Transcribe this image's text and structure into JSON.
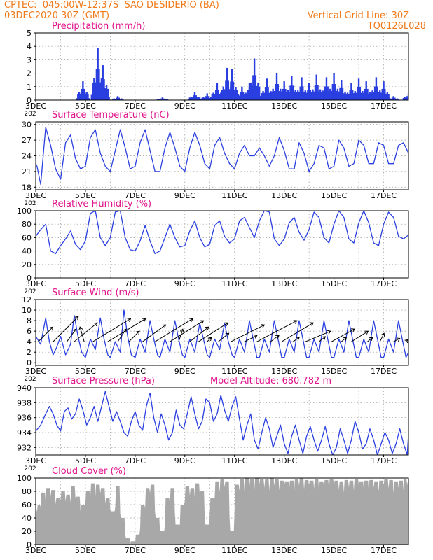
{
  "header": {
    "line1": "CPTEC:  045:00W-12:37S  SAO DESIDERIO (BA)",
    "line2": "03DEC2020 30Z (GMT)",
    "grid_note": "Vertical Grid Line: 30Z",
    "code": "TQ0126L028"
  },
  "colors": {
    "header": "#f07a1a",
    "title": "#e0148c",
    "series": "#2a3fe0",
    "cloud": "#a8a8a8"
  },
  "chart_data": [
    {
      "type": "bar",
      "title": "Precipitation (mm/h)",
      "ylim": [
        0,
        5
      ],
      "yticks": [
        0,
        1,
        2,
        3,
        4,
        5
      ],
      "x_tick_labels": [
        "3DEC",
        "5DEC",
        "7DEC",
        "9DEC",
        "11DEC",
        "13DEC",
        "15DEC",
        "17DEC"
      ],
      "overflow_label": "202",
      "bursts": [
        {
          "day": 4.9,
          "peak": 1.4
        },
        {
          "day": 5.5,
          "peak": 3.9
        },
        {
          "day": 5.7,
          "peak": 2.6
        },
        {
          "day": 6.3,
          "peak": 0.3
        },
        {
          "day": 8.1,
          "peak": 0.2
        },
        {
          "day": 9.4,
          "peak": 0.6
        },
        {
          "day": 9.9,
          "peak": 0.5
        },
        {
          "day": 10.3,
          "peak": 1.3
        },
        {
          "day": 10.7,
          "peak": 2.4
        },
        {
          "day": 10.9,
          "peak": 2.3
        },
        {
          "day": 11.3,
          "peak": 1.0
        },
        {
          "day": 11.6,
          "peak": 1.3
        },
        {
          "day": 11.8,
          "peak": 3.1
        },
        {
          "day": 12.3,
          "peak": 1.6
        },
        {
          "day": 12.7,
          "peak": 2.0
        },
        {
          "day": 13.0,
          "peak": 1.4
        },
        {
          "day": 13.3,
          "peak": 1.8
        },
        {
          "day": 13.7,
          "peak": 1.7
        },
        {
          "day": 14.0,
          "peak": 1.3
        },
        {
          "day": 14.3,
          "peak": 1.9
        },
        {
          "day": 14.7,
          "peak": 1.7
        },
        {
          "day": 15.0,
          "peak": 2.0
        },
        {
          "day": 15.3,
          "peak": 1.5
        },
        {
          "day": 15.7,
          "peak": 1.3
        },
        {
          "day": 16.0,
          "peak": 1.6
        },
        {
          "day": 16.3,
          "peak": 1.4
        },
        {
          "day": 16.7,
          "peak": 1.7
        },
        {
          "day": 17.0,
          "peak": 1.4
        },
        {
          "day": 17.4,
          "peak": 0.3
        },
        {
          "day": 18.0,
          "peak": 0.5
        }
      ]
    },
    {
      "type": "line",
      "title": "Surface Temperature (nC)",
      "ylim": [
        17.5,
        30.5
      ],
      "yticks": [
        18,
        21,
        24,
        27,
        30
      ],
      "x_tick_labels": [
        "3DEC",
        "5DEC",
        "7DEC",
        "9DEC",
        "11DEC",
        "13DEC",
        "15DEC",
        "17DEC"
      ],
      "overflow_label": "202",
      "x": [
        3.0,
        3.05,
        3.2,
        3.4,
        3.6,
        3.8,
        4.0,
        4.2,
        4.4,
        4.6,
        4.8,
        5.0,
        5.2,
        5.4,
        5.6,
        5.8,
        6.0,
        6.2,
        6.4,
        6.6,
        6.8,
        7.0,
        7.2,
        7.4,
        7.6,
        7.8,
        8.0,
        8.2,
        8.4,
        8.6,
        8.8,
        9.0,
        9.2,
        9.4,
        9.6,
        9.8,
        10.0,
        10.2,
        10.4,
        10.6,
        10.8,
        11.0,
        11.2,
        11.4,
        11.6,
        11.8,
        12.0,
        12.2,
        12.4,
        12.6,
        12.8,
        13.0,
        13.2,
        13.4,
        13.6,
        13.8,
        14.0,
        14.2,
        14.4,
        14.6,
        14.8,
        15.0,
        15.2,
        15.4,
        15.6,
        15.8,
        16.0,
        16.2,
        16.4,
        16.6,
        16.8,
        17.0,
        17.2,
        17.4,
        17.6,
        17.8,
        18.0
      ],
      "y": [
        22.5,
        22.0,
        18.5,
        29.5,
        26.0,
        21.5,
        19.5,
        26.5,
        28.0,
        23.5,
        21.5,
        22.0,
        27.5,
        29.0,
        24.5,
        22.0,
        21.0,
        25.0,
        29.0,
        25.5,
        21.5,
        22.0,
        26.5,
        29.0,
        25.0,
        21.0,
        21.0,
        25.5,
        28.5,
        25.5,
        22.0,
        21.0,
        25.5,
        28.5,
        26.0,
        22.5,
        21.5,
        26.0,
        27.5,
        24.5,
        22.5,
        21.5,
        24.5,
        26.0,
        24.0,
        24.0,
        25.5,
        24.0,
        22.0,
        24.0,
        27.5,
        25.0,
        21.5,
        21.5,
        26.5,
        24.5,
        21.0,
        22.5,
        26.0,
        25.5,
        21.5,
        22.0,
        27.0,
        25.5,
        22.0,
        22.5,
        27.0,
        26.0,
        22.5,
        22.5,
        26.5,
        26.0,
        22.5,
        22.5,
        26.0,
        26.5,
        24.5
      ]
    },
    {
      "type": "line",
      "title": "Relative Humidity (%)",
      "ylim": [
        0,
        100
      ],
      "yticks": [
        0,
        20,
        40,
        60,
        80,
        100
      ],
      "x_tick_labels": [
        "3DEC",
        "5DEC",
        "7DEC",
        "9DEC",
        "11DEC",
        "13DEC",
        "15DEC",
        "17DEC"
      ],
      "overflow_label": "202",
      "x": [
        3.0,
        3.2,
        3.4,
        3.6,
        3.8,
        4.0,
        4.2,
        4.4,
        4.6,
        4.8,
        5.0,
        5.2,
        5.4,
        5.6,
        5.8,
        6.0,
        6.2,
        6.4,
        6.6,
        6.8,
        7.0,
        7.2,
        7.4,
        7.6,
        7.8,
        8.0,
        8.2,
        8.4,
        8.6,
        8.8,
        9.0,
        9.2,
        9.4,
        9.6,
        9.8,
        10.0,
        10.2,
        10.4,
        10.6,
        10.8,
        11.0,
        11.2,
        11.4,
        11.6,
        11.8,
        12.0,
        12.2,
        12.4,
        12.6,
        12.8,
        13.0,
        13.2,
        13.4,
        13.6,
        13.8,
        14.0,
        14.2,
        14.4,
        14.6,
        14.8,
        15.0,
        15.2,
        15.4,
        15.6,
        15.8,
        16.0,
        16.2,
        16.4,
        16.6,
        16.8,
        17.0,
        17.2,
        17.4,
        17.6,
        17.8,
        18.0
      ],
      "y": [
        62,
        72,
        80,
        40,
        36,
        48,
        58,
        70,
        50,
        42,
        55,
        96,
        100,
        60,
        48,
        60,
        98,
        100,
        60,
        42,
        40,
        55,
        78,
        55,
        36,
        40,
        60,
        80,
        60,
        46,
        48,
        70,
        85,
        60,
        46,
        50,
        78,
        85,
        62,
        52,
        58,
        85,
        90,
        75,
        60,
        85,
        100,
        98,
        58,
        48,
        58,
        82,
        90,
        68,
        56,
        72,
        98,
        90,
        60,
        52,
        80,
        100,
        90,
        58,
        52,
        82,
        100,
        82,
        52,
        48,
        80,
        98,
        90,
        62,
        58,
        64
      ]
    },
    {
      "type": "line",
      "title": "Surface Wind (m/s)",
      "ylim": [
        -0.5,
        12
      ],
      "yticks": [
        0,
        2,
        4,
        6,
        8,
        10,
        12
      ],
      "x_tick_labels": [
        "3DEC",
        "5DEC",
        "7DEC",
        "9DEC",
        "11DEC",
        "13DEC",
        "15DEC",
        "17DEC"
      ],
      "overflow_label": "202",
      "x": [
        3.0,
        3.2,
        3.4,
        3.55,
        3.7,
        3.85,
        4.0,
        4.2,
        4.4,
        4.55,
        4.7,
        4.85,
        5.0,
        5.2,
        5.4,
        5.6,
        5.75,
        5.9,
        6.0,
        6.2,
        6.4,
        6.55,
        6.7,
        6.85,
        7.0,
        7.2,
        7.4,
        7.6,
        7.75,
        7.9,
        8.0,
        8.2,
        8.4,
        8.6,
        8.75,
        8.9,
        9.0,
        9.2,
        9.4,
        9.6,
        9.75,
        9.9,
        10.0,
        10.2,
        10.4,
        10.6,
        10.75,
        10.9,
        11.0,
        11.2,
        11.4,
        11.6,
        11.75,
        11.9,
        12.0,
        12.2,
        12.4,
        12.6,
        12.75,
        12.9,
        13.0,
        13.2,
        13.4,
        13.6,
        13.75,
        13.9,
        14.0,
        14.2,
        14.4,
        14.6,
        14.75,
        14.9,
        15.0,
        15.2,
        15.4,
        15.6,
        15.75,
        15.9,
        16.0,
        16.2,
        16.4,
        16.6,
        16.75,
        16.9,
        17.0,
        17.2,
        17.4,
        17.6,
        17.75,
        17.9,
        18.0
      ],
      "y": [
        5,
        3.5,
        8.5,
        4,
        1.5,
        3,
        5,
        1.5,
        3.5,
        9,
        5,
        2,
        1,
        4.5,
        2.5,
        8.5,
        4.5,
        1.5,
        1,
        4,
        2,
        10,
        5,
        1.5,
        1,
        4.5,
        2,
        8,
        4.5,
        1.5,
        1,
        4.5,
        2,
        8,
        4.5,
        1.5,
        1,
        4.5,
        2,
        7.5,
        4.5,
        1.5,
        1,
        4.5,
        2.5,
        7.5,
        4,
        1.5,
        1,
        4.5,
        2,
        8,
        4.5,
        1,
        1,
        4.5,
        2,
        8,
        4.5,
        1,
        1,
        4.5,
        2,
        8,
        4.5,
        1,
        1,
        4.5,
        2,
        8,
        4.5,
        1,
        1,
        4.5,
        2,
        8,
        4.5,
        1,
        1,
        4.5,
        2,
        8,
        4.5,
        1,
        1,
        4.5,
        2,
        8,
        4.5,
        1,
        2
      ],
      "vectors": [
        {
          "day": 3.1,
          "dx": 0.35,
          "dy": 0.35
        },
        {
          "day": 3.7,
          "dx": 0.6,
          "dy": 0.6
        },
        {
          "day": 4.25,
          "dx": 0.22,
          "dy": 0.3
        },
        {
          "day": 4.55,
          "dx": 0.55,
          "dy": 0.45
        },
        {
          "day": 4.95,
          "dx": -0.1,
          "dy": 0.35
        },
        {
          "day": 5.3,
          "dx": 0.9,
          "dy": 0.55
        },
        {
          "day": 5.9,
          "dx": 0.9,
          "dy": 0.55
        },
        {
          "day": 6.3,
          "dx": 0.2,
          "dy": 0.3
        },
        {
          "day": 6.75,
          "dx": 0.25,
          "dy": 0.25
        },
        {
          "day": 7.3,
          "dx": 0.55,
          "dy": 0.4
        },
        {
          "day": 7.8,
          "dx": 0.9,
          "dy": 0.55
        },
        {
          "day": 8.4,
          "dx": 0.8,
          "dy": 0.5
        },
        {
          "day": 8.75,
          "dx": 0.1,
          "dy": 0.3
        },
        {
          "day": 9.2,
          "dx": 0.45,
          "dy": 0.35
        },
        {
          "day": 9.55,
          "dx": 0.7,
          "dy": 0.45
        },
        {
          "day": 9.9,
          "dx": 0.1,
          "dy": 0.1
        },
        {
          "day": 10.35,
          "dx": 0.25,
          "dy": 0.2
        },
        {
          "day": 10.85,
          "dx": 0.8,
          "dy": 0.4
        },
        {
          "day": 11.4,
          "dx": 0.3,
          "dy": 0.15
        },
        {
          "day": 11.9,
          "dx": 0.95,
          "dy": 0.5
        },
        {
          "day": 12.45,
          "dx": 0.2,
          "dy": 0.15
        },
        {
          "day": 12.9,
          "dx": 0.75,
          "dy": 0.45
        },
        {
          "day": 13.35,
          "dx": 0.15,
          "dy": 0.1
        },
        {
          "day": 13.85,
          "dx": 0.6,
          "dy": 0.25
        },
        {
          "day": 14.4,
          "dx": 0.15,
          "dy": 0.12
        },
        {
          "day": 14.9,
          "dx": 0.55,
          "dy": 0.3
        },
        {
          "day": 15.3,
          "dx": 0.12,
          "dy": 0.1
        },
        {
          "day": 15.7,
          "dx": 0.4,
          "dy": 0.25
        },
        {
          "day": 16.35,
          "dx": 0.12,
          "dy": 0.1
        },
        {
          "day": 16.85,
          "dx": 0.1,
          "dy": 0.2
        },
        {
          "day": 17.4,
          "dx": 0.15,
          "dy": 0.08
        },
        {
          "day": 17.9,
          "dx": 0.05,
          "dy": 0.05
        }
      ]
    },
    {
      "type": "line",
      "title": "Surface Pressure (hPa)",
      "subtitle": "Model Altitude: 680.782 m",
      "ylim": [
        931,
        940
      ],
      "yticks": [
        932,
        934,
        936,
        938,
        940
      ],
      "x_tick_labels": [
        "3DEC",
        "5DEC",
        "7DEC",
        "9DEC",
        "11DEC",
        "13DEC",
        "15DEC",
        "17DEC"
      ],
      "overflow_label": "202",
      "x": [
        3.0,
        3.2,
        3.4,
        3.55,
        3.7,
        3.85,
        4.0,
        4.15,
        4.3,
        4.45,
        4.6,
        4.75,
        4.9,
        5.05,
        5.2,
        5.35,
        5.5,
        5.65,
        5.8,
        5.95,
        6.1,
        6.25,
        6.4,
        6.55,
        6.7,
        6.85,
        7.0,
        7.15,
        7.3,
        7.45,
        7.6,
        7.75,
        7.9,
        8.05,
        8.2,
        8.35,
        8.5,
        8.65,
        8.8,
        8.95,
        9.1,
        9.25,
        9.4,
        9.55,
        9.7,
        9.85,
        10.0,
        10.15,
        10.3,
        10.45,
        10.6,
        10.75,
        10.9,
        11.05,
        11.2,
        11.35,
        11.5,
        11.65,
        11.8,
        11.95,
        12.1,
        12.25,
        12.4,
        12.55,
        12.7,
        12.85,
        13.0,
        13.15,
        13.3,
        13.45,
        13.6,
        13.75,
        13.9,
        14.05,
        14.2,
        14.35,
        14.5,
        14.65,
        14.8,
        14.95,
        15.1,
        15.25,
        15.4,
        15.55,
        15.7,
        15.85,
        16.0,
        16.15,
        16.3,
        16.45,
        16.6,
        16.75,
        16.9,
        17.05,
        17.2,
        17.35,
        17.5,
        17.65,
        17.8,
        17.95,
        18.0
      ],
      "y": [
        934.2,
        935.0,
        936.5,
        937.5,
        936.5,
        935.0,
        934.2,
        936.8,
        937.3,
        935.8,
        936.5,
        938.5,
        937.0,
        935.0,
        936.0,
        937.5,
        935.5,
        937.5,
        939.5,
        937.5,
        935.5,
        936.8,
        935.5,
        934.0,
        933.5,
        935.5,
        936.8,
        935.0,
        934.3,
        937.5,
        939.3,
        936.0,
        934.0,
        936.5,
        935.0,
        933.0,
        934.0,
        937.0,
        935.0,
        934.5,
        936.5,
        938.8,
        936.5,
        934.5,
        935.5,
        938.5,
        938.0,
        935.5,
        936.5,
        939.0,
        937.0,
        935.5,
        937.5,
        938.8,
        935.8,
        933.0,
        935.0,
        936.5,
        933.0,
        931.8,
        934.0,
        936.0,
        934.5,
        932.0,
        933.5,
        935.0,
        932.5,
        931.2,
        933.5,
        935.0,
        933.0,
        931.2,
        933.5,
        934.8,
        933.0,
        931.5,
        933.0,
        934.8,
        932.5,
        931.0,
        932.0,
        934.5,
        933.0,
        931.2,
        933.0,
        935.5,
        934.0,
        931.8,
        932.5,
        934.5,
        933.0,
        931.0,
        932.5,
        934.0,
        933.0,
        931.2,
        932.5,
        934.5,
        932.5,
        931.0,
        933.8
      ]
    },
    {
      "type": "area",
      "title": "Cloud Cover (%)",
      "ylim": [
        0,
        100
      ],
      "yticks": [
        0,
        20,
        40,
        60,
        80,
        100
      ],
      "x_tick_labels": [
        "3DEC",
        "5DEC",
        "7DEC",
        "9DEC",
        "11DEC",
        "13DEC",
        "15DEC",
        "17DEC"
      ],
      "x": [
        3.0,
        3.1,
        3.3,
        3.5,
        3.7,
        3.9,
        4.1,
        4.3,
        4.5,
        4.7,
        4.9,
        5.1,
        5.3,
        5.5,
        5.7,
        5.9,
        6.1,
        6.3,
        6.5,
        6.7,
        6.9,
        7.1,
        7.3,
        7.5,
        7.7,
        7.9,
        8.1,
        8.3,
        8.5,
        8.7,
        8.9,
        9.1,
        9.3,
        9.5,
        9.7,
        9.9,
        10.1,
        10.3,
        10.5,
        10.7,
        10.9,
        11.1,
        11.3,
        11.5,
        11.7,
        11.9,
        12.1,
        12.3,
        12.5,
        12.7,
        12.9,
        13.1,
        13.3,
        13.5,
        13.7,
        13.9,
        14.1,
        14.3,
        14.5,
        14.7,
        14.9,
        15.1,
        15.3,
        15.5,
        15.7,
        15.9,
        16.1,
        16.3,
        16.5,
        16.7,
        16.9,
        17.1,
        17.3,
        17.5,
        17.7,
        17.9,
        18.0
      ],
      "y": [
        55,
        60,
        78,
        85,
        82,
        70,
        80,
        75,
        88,
        72,
        60,
        80,
        92,
        90,
        85,
        70,
        50,
        88,
        40,
        10,
        5,
        15,
        60,
        85,
        90,
        40,
        20,
        70,
        85,
        30,
        60,
        88,
        85,
        92,
        80,
        30,
        70,
        95,
        98,
        95,
        20,
        90,
        98,
        100,
        98,
        100,
        98,
        98,
        100,
        98,
        96,
        95,
        96,
        98,
        100,
        97,
        96,
        98,
        95,
        97,
        98,
        96,
        95,
        97,
        96,
        98,
        95,
        96,
        97,
        95,
        96,
        98,
        97,
        95,
        96,
        98,
        97
      ]
    }
  ]
}
